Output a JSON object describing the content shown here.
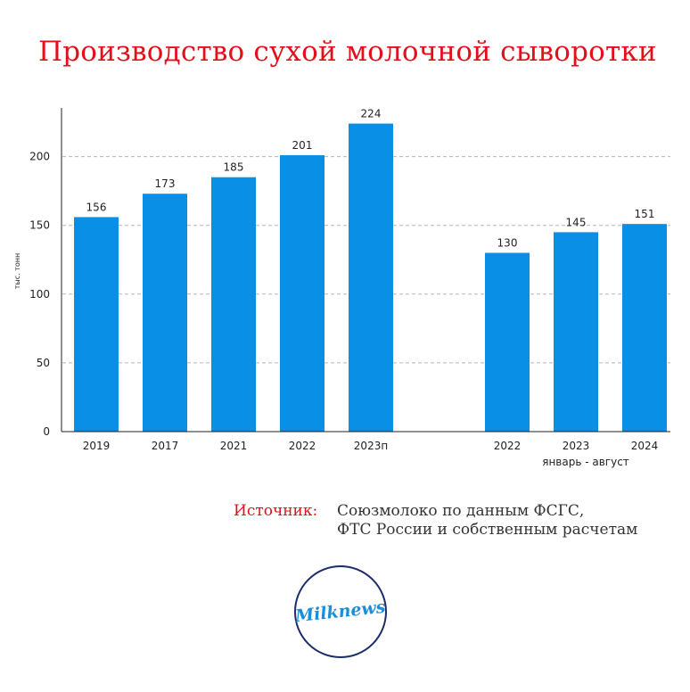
{
  "title": "Производство сухой молочной сыворотки",
  "chart_data": {
    "type": "bar",
    "ylabel": "тыс. тонн",
    "ylim": [
      0,
      225
    ],
    "yticks": [
      0,
      50,
      100,
      150,
      200
    ],
    "grid": true,
    "bar_color": "#0a8fe6",
    "groups": [
      {
        "label": "",
        "categories": [
          "2019",
          "2017",
          "2021",
          "2022",
          "2023п"
        ],
        "values": [
          156,
          173,
          185,
          201,
          224
        ]
      },
      {
        "label": "январь - август",
        "categories": [
          "2022",
          "2023",
          "2024"
        ],
        "values": [
          130,
          145,
          151
        ]
      }
    ]
  },
  "source": {
    "label": "Источник:",
    "line1": "Союзмолоко по данным ФСГС,",
    "line2": "ФТС России и собственным расчетам"
  },
  "logo": {
    "text": "Milknews"
  }
}
